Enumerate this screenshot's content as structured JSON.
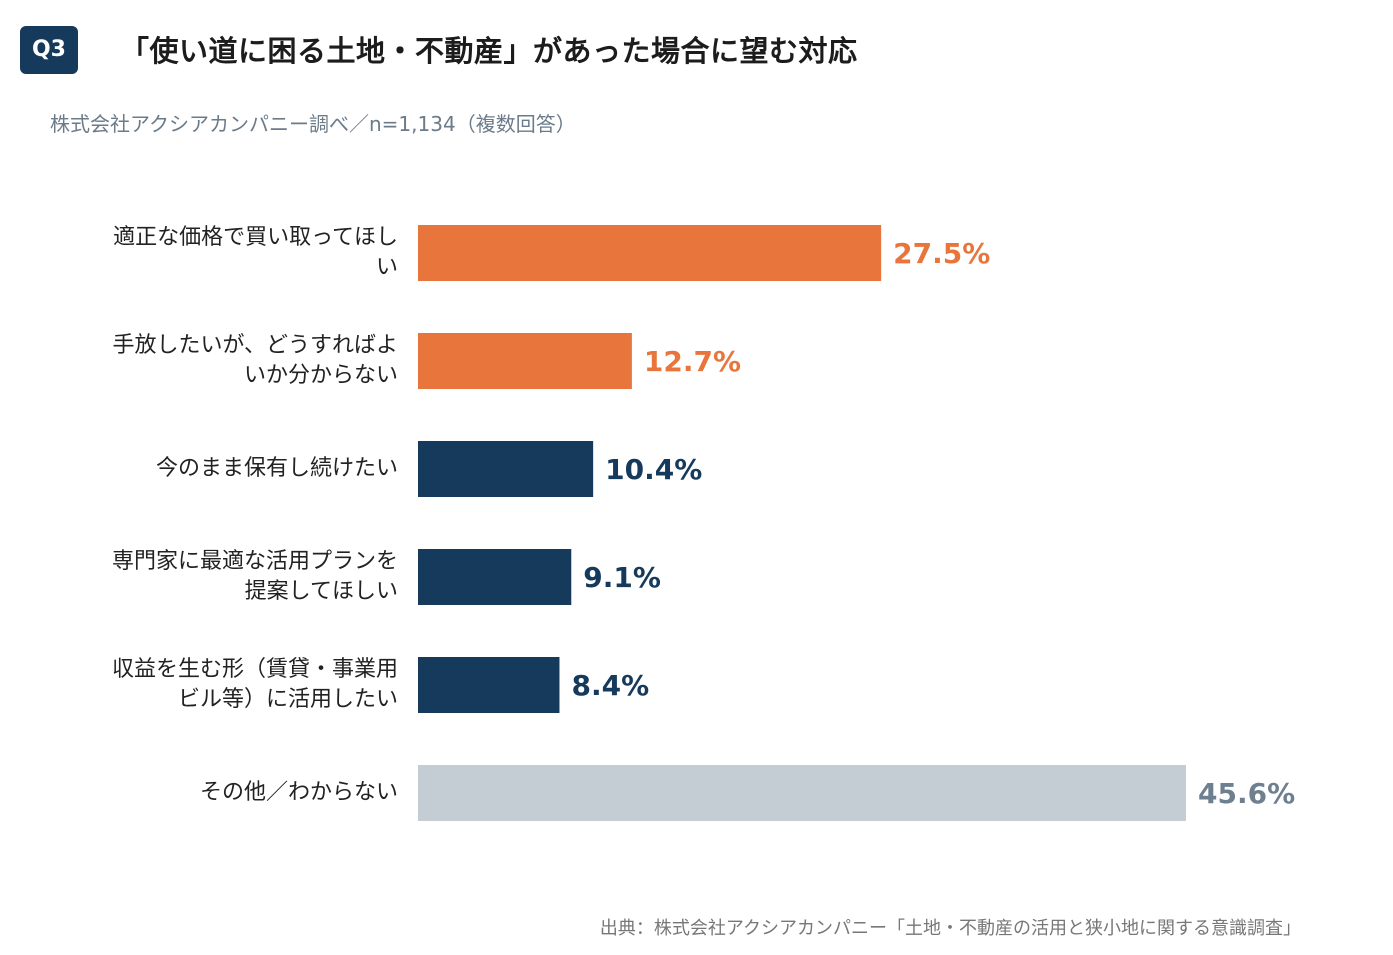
{
  "badge": "Q3",
  "title": "「使い道に困る土地・不動産」があった場合に望む対応",
  "subtitle": "株式会社アクシアカンパニー調べ／n=1,134（複数回答）",
  "footer": "出典：株式会社アクシアカンパニー「土地・不動産の活用と狭小地に関する意識調査」",
  "colors": {
    "highlight": "#e8763c",
    "primary": "#153a5c",
    "other": "#c4ccd4",
    "other_label": "#6e7f8f"
  },
  "chart_data": {
    "type": "bar",
    "orientation": "horizontal",
    "title": "「使い道に困る土地・不動産」があった場合に望む対応",
    "categories": [
      [
        "適正な価格で買い取ってほし",
        "い"
      ],
      [
        "手放したいが、どうすればよ",
        "いか分からない"
      ],
      [
        "今のまま保有し続けたい"
      ],
      [
        "専門家に最適な活用プランを",
        "提案してほしい"
      ],
      [
        "収益を生む形（賃貸・事業用",
        "ビル等）に活用したい"
      ],
      [
        "その他／わからない"
      ]
    ],
    "values": [
      27.5,
      12.7,
      10.4,
      9.1,
      8.4,
      45.6
    ],
    "value_labels": [
      "27.5%",
      "12.7%",
      "10.4%",
      "9.1%",
      "8.4%",
      "45.6%"
    ],
    "bar_color_groups": [
      "highlight",
      "highlight",
      "primary",
      "primary",
      "primary",
      "other"
    ],
    "xlim": [
      0,
      50
    ],
    "grid": false,
    "unit": "%"
  }
}
